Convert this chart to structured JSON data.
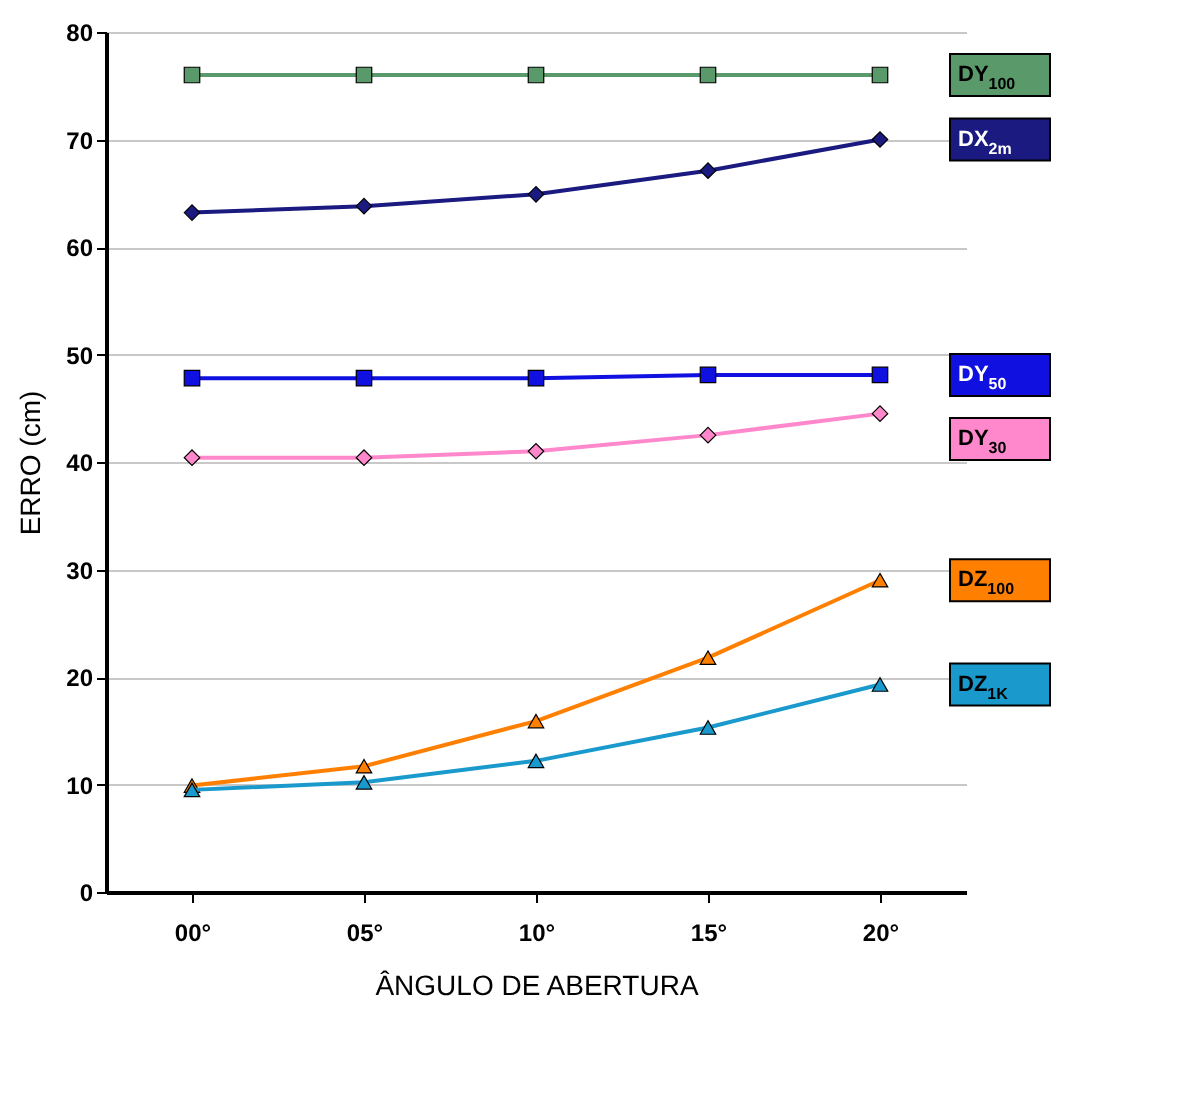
{
  "chart_data": {
    "type": "line",
    "xlabel": "ÂNGULO DE ABERTURA",
    "ylabel": "ERRO (cm)",
    "categories": [
      "00°",
      "05°",
      "10°",
      "15°",
      "20°"
    ],
    "ylim": [
      0,
      80
    ],
    "yticks": [
      0,
      10,
      20,
      30,
      40,
      50,
      60,
      70,
      80
    ],
    "grid": "y",
    "legend": "right",
    "series": [
      {
        "name": "DY$_{100}$",
        "color": "#5a9a6a",
        "marker": "square",
        "values": [
          76,
          76,
          76,
          76,
          76
        ]
      },
      {
        "name": "DX$_{2m}$",
        "color": "#1a1a80",
        "marker": "diamond",
        "values": [
          63.2,
          63.8,
          64.9,
          67.1,
          70.0
        ]
      },
      {
        "name": "DY$_{50}$",
        "color": "#1010e0",
        "marker": "square",
        "values": [
          47.8,
          47.8,
          47.8,
          48.1,
          48.1
        ]
      },
      {
        "name": "DY$_{30}$",
        "color": "#ff88cc",
        "marker": "diamond",
        "values": [
          40.4,
          40.4,
          41.0,
          42.5,
          44.5
        ]
      },
      {
        "name": "DZ$_{100}$",
        "color": "#ff8000",
        "marker": "triangle",
        "values": [
          9.9,
          11.7,
          15.9,
          21.8,
          29.0
        ]
      },
      {
        "name": "DZ$_{1K}$",
        "color": "#1a9acc",
        "marker": "triangle",
        "values": [
          9.5,
          10.2,
          12.2,
          15.3,
          19.3
        ]
      }
    ]
  }
}
